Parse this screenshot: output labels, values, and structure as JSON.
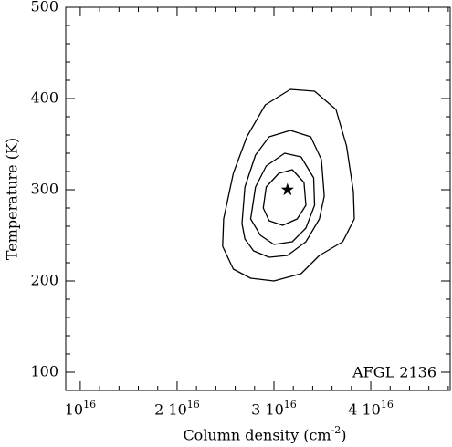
{
  "chart_data": {
    "type": "contour",
    "xlabel": "Column density (cm^{-2})",
    "ylabel": "Temperature (K)",
    "annotation": "AFGL 2136",
    "xlim": [
      8500000000000000.0,
      4.82e+16
    ],
    "ylim": [
      80,
      500
    ],
    "xticks": [
      {
        "value": 1e+16,
        "label": "10^{16}"
      },
      {
        "value": 2e+16,
        "label": "2 10^{16}"
      },
      {
        "value": 3e+16,
        "label": "3 10^{16}"
      },
      {
        "value": 4e+16,
        "label": "4 10^{16}"
      }
    ],
    "yticks": [
      100,
      200,
      300,
      400,
      500
    ],
    "xminorticks": [
      1.2e+16,
      1.4e+16,
      1.6e+16,
      1.8e+16,
      2.2e+16,
      2.4e+16,
      2.6e+16,
      2.8e+16,
      3.2e+16,
      3.4e+16,
      3.6e+16,
      3.8e+16,
      4.2e+16,
      4.4e+16,
      4.6e+16,
      4.8e+16
    ],
    "yminorticks": [
      120,
      140,
      160,
      180,
      220,
      240,
      260,
      280,
      320,
      340,
      360,
      380,
      420,
      440,
      460,
      480
    ],
    "color": "#000000",
    "series": [
      {
        "x": [
          2.47e+16,
          2.48e+16,
          2.58e+16,
          2.72e+16,
          2.91e+16,
          3.17e+16,
          3.42e+16,
          3.64e+16,
          3.75e+16,
          3.82e+16,
          3.83e+16,
          3.71e+16,
          3.47e+16,
          3.28e+16,
          3e+16,
          2.76e+16,
          2.58e+16
        ],
        "y": [
          238,
          268,
          318,
          358,
          393,
          410,
          408,
          388,
          348,
          298,
          268,
          243,
          228,
          208,
          200,
          203,
          213
        ]
      },
      {
        "x": [
          2.67e+16,
          2.7e+16,
          2.81e+16,
          2.95e+16,
          3.17e+16,
          3.38e+16,
          3.49e+16,
          3.52e+16,
          3.47e+16,
          3.33e+16,
          3.14e+16,
          2.95e+16,
          2.79e+16,
          2.7e+16
        ],
        "y": [
          263,
          303,
          338,
          358,
          365,
          358,
          333,
          293,
          268,
          243,
          228,
          226,
          233,
          246
        ]
      },
      {
        "x": [
          2.76e+16,
          2.81e+16,
          2.92e+16,
          3.11e+16,
          3.28e+16,
          3.41e+16,
          3.42e+16,
          3.33e+16,
          3.19e+16,
          3e+16,
          2.86e+16
        ],
        "y": [
          268,
          303,
          326,
          340,
          336,
          313,
          283,
          258,
          243,
          240,
          250
        ]
      },
      {
        "x": [
          2.89e+16,
          2.92e+16,
          3.05e+16,
          3.19e+16,
          3.31e+16,
          3.33e+16,
          3.24e+16,
          3.09e+16,
          2.95e+16
        ],
        "y": [
          280,
          303,
          318,
          322,
          308,
          283,
          268,
          261,
          266
        ]
      }
    ],
    "best_fit": {
      "x": 3.14e+16,
      "y": 300
    }
  }
}
